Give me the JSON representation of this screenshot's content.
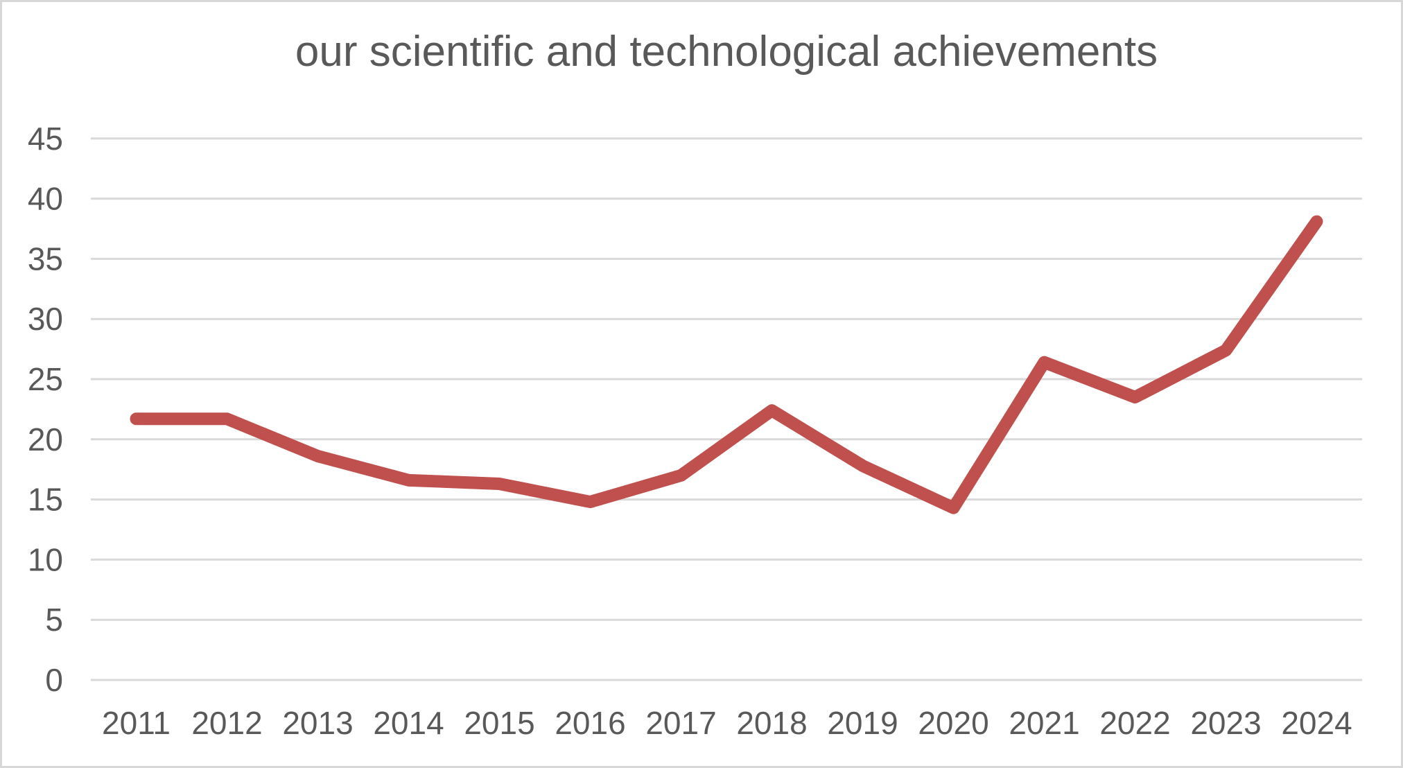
{
  "chart_data": {
    "type": "line",
    "title": "our scientific and technological achievements",
    "categories": [
      "2011",
      "2012",
      "2013",
      "2014",
      "2015",
      "2016",
      "2017",
      "2018",
      "2019",
      "2020",
      "2021",
      "2022",
      "2023",
      "2024"
    ],
    "series": [
      {
        "name": "achievements",
        "values": [
          21.7,
          21.7,
          18.6,
          16.6,
          16.3,
          14.8,
          17.0,
          22.4,
          17.8,
          14.3,
          26.4,
          23.5,
          27.4,
          38.1
        ]
      }
    ],
    "xlabel": "",
    "ylabel": "",
    "ylim": [
      0,
      45
    ],
    "yticks": [
      0,
      5,
      10,
      15,
      20,
      25,
      30,
      35,
      40,
      45
    ],
    "grid": "horizontal",
    "legend": "none",
    "colors": {
      "line": "#C0504D",
      "gridline": "#D9D9D9",
      "tick_text": "#595959",
      "title_text": "#595959",
      "background": "#FFFFFF",
      "frame_border": "#D7D7D7"
    }
  }
}
